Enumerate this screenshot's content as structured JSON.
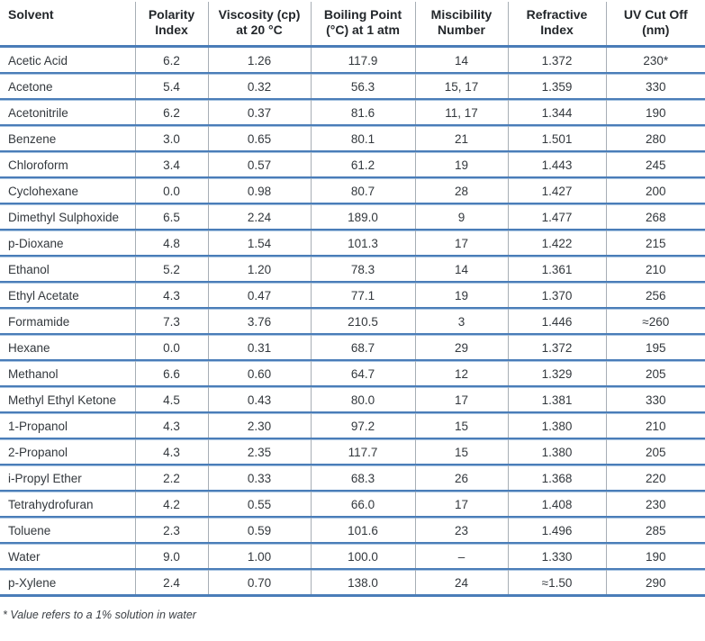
{
  "table": {
    "columns": [
      {
        "key": "solvent",
        "label": "Solvent"
      },
      {
        "key": "polarity_index",
        "label": "Polarity\nIndex"
      },
      {
        "key": "viscosity",
        "label": "Viscosity (cp)\nat 20 °C"
      },
      {
        "key": "boiling_point",
        "label": "Boiling Point\n(°C) at 1 atm"
      },
      {
        "key": "miscibility",
        "label": "Miscibility\nNumber"
      },
      {
        "key": "refractive_index",
        "label": "Refractive\nIndex"
      },
      {
        "key": "uv_cutoff",
        "label": "UV Cut Off\n(nm)"
      }
    ],
    "rows": [
      [
        "Acetic Acid",
        "6.2",
        "1.26",
        "117.9",
        "14",
        "1.372",
        "230*"
      ],
      [
        "Acetone",
        "5.4",
        "0.32",
        "56.3",
        "15, 17",
        "1.359",
        "330"
      ],
      [
        "Acetonitrile",
        "6.2",
        "0.37",
        "81.6",
        "11, 17",
        "1.344",
        "190"
      ],
      [
        "Benzene",
        "3.0",
        "0.65",
        "80.1",
        "21",
        "1.501",
        "280"
      ],
      [
        "Chloroform",
        "3.4",
        "0.57",
        "61.2",
        "19",
        "1.443",
        "245"
      ],
      [
        "Cyclohexane",
        "0.0",
        "0.98",
        "80.7",
        "28",
        "1.427",
        "200"
      ],
      [
        "Dimethyl Sulphoxide",
        "6.5",
        "2.24",
        "189.0",
        "9",
        "1.477",
        "268"
      ],
      [
        "p-Dioxane",
        "4.8",
        "1.54",
        "101.3",
        "17",
        "1.422",
        "215"
      ],
      [
        "Ethanol",
        "5.2",
        "1.20",
        "78.3",
        "14",
        "1.361",
        "210"
      ],
      [
        "Ethyl Acetate",
        "4.3",
        "0.47",
        "77.1",
        "19",
        "1.370",
        "256"
      ],
      [
        "Formamide",
        "7.3",
        "3.76",
        "210.5",
        "3",
        "1.446",
        "≈260"
      ],
      [
        "Hexane",
        "0.0",
        "0.31",
        "68.7",
        "29",
        "1.372",
        "195"
      ],
      [
        "Methanol",
        "6.6",
        "0.60",
        "64.7",
        "12",
        "1.329",
        "205"
      ],
      [
        "Methyl Ethyl Ketone",
        "4.5",
        "0.43",
        "80.0",
        "17",
        "1.381",
        "330"
      ],
      [
        "1-Propanol",
        "4.3",
        "2.30",
        "97.2",
        "15",
        "1.380",
        "210"
      ],
      [
        "2-Propanol",
        "4.3",
        "2.35",
        "117.7",
        "15",
        "1.380",
        "205"
      ],
      [
        "i-Propyl Ether",
        "2.2",
        "0.33",
        "68.3",
        "26",
        "1.368",
        "220"
      ],
      [
        "Tetrahydrofuran",
        "4.2",
        "0.55",
        "66.0",
        "17",
        "1.408",
        "230"
      ],
      [
        "Toluene",
        "2.3",
        "0.59",
        "101.6",
        "23",
        "1.496",
        "285"
      ],
      [
        "Water",
        "9.0",
        "1.00",
        "100.0",
        "–",
        "1.330",
        "190"
      ],
      [
        "p-Xylene",
        "2.4",
        "0.70",
        "138.0",
        "24",
        "≈1.50",
        "290"
      ]
    ]
  },
  "footnote": "* Value refers to a 1% solution in water",
  "colors": {
    "rule_blue": "#4a7db8",
    "rule_light_blue": "#a9c5e2",
    "divider_gray": "#a7aeb5",
    "text": "#33383d"
  }
}
